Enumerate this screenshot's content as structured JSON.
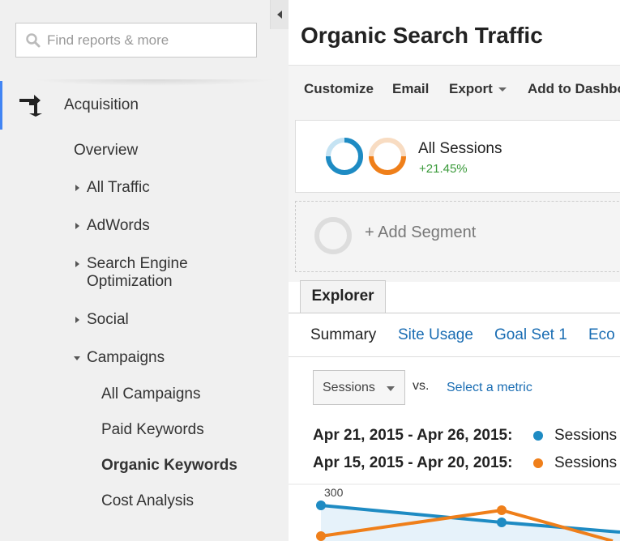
{
  "sidebar": {
    "search_placeholder": "Find reports & more",
    "section": "Acquisition",
    "items": [
      {
        "label": "Overview"
      },
      {
        "label": "All Traffic"
      },
      {
        "label": "AdWords"
      },
      {
        "label": "Search Engine Optimization"
      },
      {
        "label": "Social"
      },
      {
        "label": "Campaigns"
      }
    ],
    "campaign_items": [
      {
        "label": "All Campaigns"
      },
      {
        "label": "Paid Keywords"
      },
      {
        "label": "Organic Keywords",
        "selected": true
      },
      {
        "label": "Cost Analysis"
      }
    ],
    "accent_color": "#4285f4"
  },
  "header": {
    "title": "Organic Search Traffic"
  },
  "toolbar": {
    "customize": "Customize",
    "email": "Email",
    "export": "Export",
    "add_to_dashboard": "Add to Dashbo"
  },
  "segments": {
    "all_sessions": "All Sessions",
    "change": "+21.45%",
    "add_segment": "+ Add Segment"
  },
  "explorer": {
    "tab": "Explorer",
    "subtabs": [
      "Summary",
      "Site Usage",
      "Goal Set 1",
      "Eco"
    ]
  },
  "metric": {
    "selected": "Sessions",
    "vs": "vs.",
    "select_metric": "Select a metric"
  },
  "legend": [
    {
      "range": "Apr 21, 2015 - Apr 26, 2015:",
      "series": "Sessions",
      "color": "#1e8bc3"
    },
    {
      "range": "Apr 15, 2015 - Apr 20, 2015:",
      "series": "Sessions",
      "color": "#ef7f1a"
    }
  ],
  "chart": {
    "y_tick": "300"
  }
}
